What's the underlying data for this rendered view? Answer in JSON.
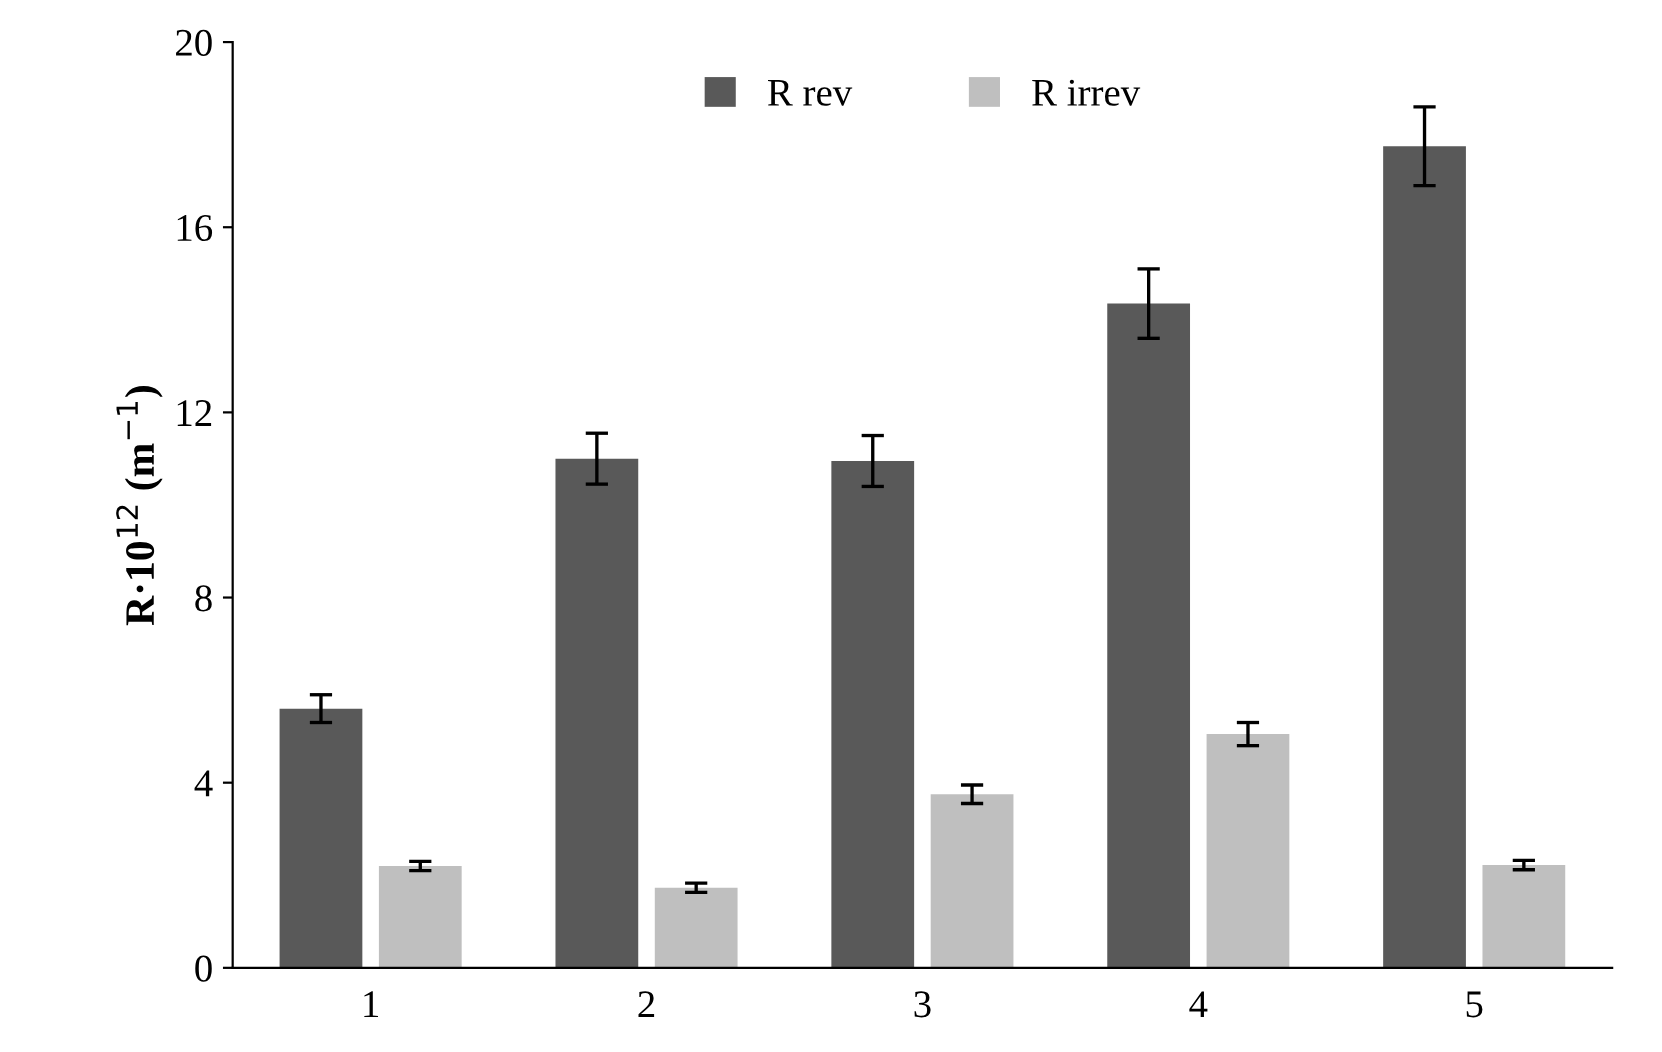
{
  "chart_data": {
    "type": "bar",
    "ylabel": "R·10$^{12}$ (m$^{−1}$)",
    "categories": [
      "1",
      "2",
      "3",
      "4",
      "5"
    ],
    "series": [
      {
        "name": "R rev",
        "color": "#595959",
        "values": [
          5.6,
          11.0,
          10.95,
          14.35,
          17.75
        ],
        "errors": [
          0.3,
          0.55,
          0.55,
          0.75,
          0.85
        ]
      },
      {
        "name": "R irrev",
        "color": "#bfbfbf",
        "values": [
          2.2,
          1.73,
          3.75,
          5.05,
          2.22
        ],
        "errors": [
          0.1,
          0.1,
          0.2,
          0.25,
          0.1
        ]
      }
    ],
    "ylim": [
      0,
      20
    ],
    "yticks": [
      0,
      4,
      8,
      12,
      16,
      20
    ],
    "grid": false,
    "legend": "top"
  }
}
